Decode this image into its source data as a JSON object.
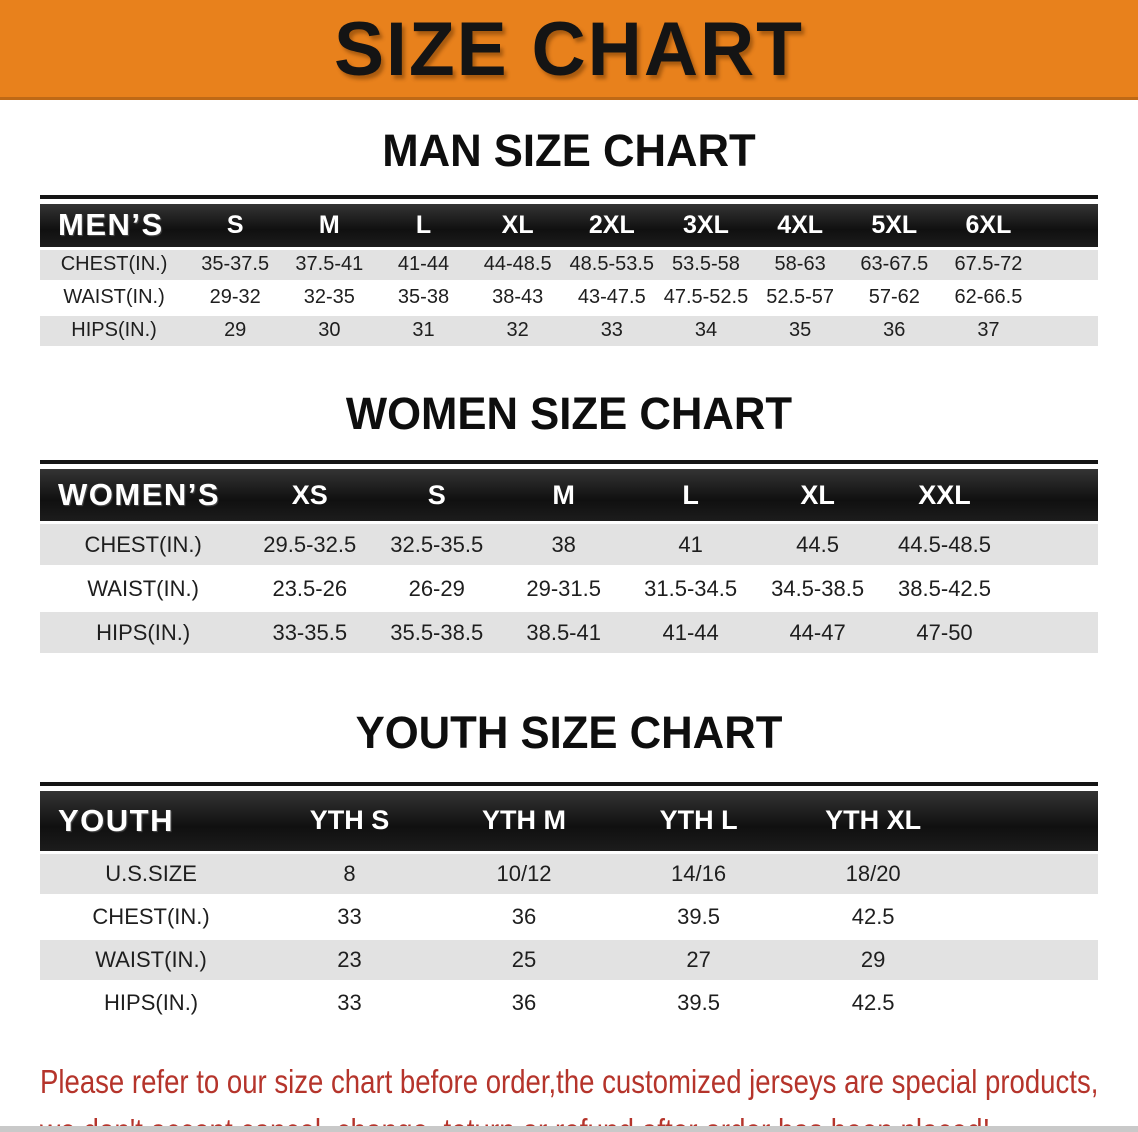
{
  "banner": {
    "title": "SIZE CHART"
  },
  "men": {
    "heading": "MAN SIZE CHART",
    "label": "MEN’S",
    "columns": [
      "S",
      "M",
      "L",
      "XL",
      "2XL",
      "3XL",
      "4XL",
      "5XL",
      "6XL"
    ],
    "rows": [
      {
        "label": "CHEST(IN.)",
        "values": [
          "35-37.5",
          "37.5-41",
          "41-44",
          "44-48.5",
          "48.5-53.5",
          "53.5-58",
          "58-63",
          "63-67.5",
          "67.5-72"
        ]
      },
      {
        "label": "WAIST(IN.)",
        "values": [
          "29-32",
          "32-35",
          "35-38",
          "38-43",
          "43-47.5",
          "47.5-52.5",
          "52.5-57",
          "57-62",
          "62-66.5"
        ]
      },
      {
        "label": "HIPS(IN.)",
        "values": [
          "29",
          "30",
          "31",
          "32",
          "33",
          "34",
          "35",
          "36",
          "37"
        ]
      }
    ]
  },
  "women": {
    "heading": "WOMEN SIZE CHART",
    "label": "WOMEN’S",
    "columns": [
      "XS",
      "S",
      "M",
      "L",
      "XL",
      "XXL"
    ],
    "rows": [
      {
        "label": "CHEST(IN.)",
        "values": [
          "29.5-32.5",
          "32.5-35.5",
          "38",
          "41",
          "44.5",
          "44.5-48.5"
        ]
      },
      {
        "label": "WAIST(IN.)",
        "values": [
          "23.5-26",
          "26-29",
          "29-31.5",
          "31.5-34.5",
          "34.5-38.5",
          "38.5-42.5"
        ]
      },
      {
        "label": "HIPS(IN.)",
        "values": [
          "33-35.5",
          "35.5-38.5",
          "38.5-41",
          "41-44",
          "44-47",
          "47-50"
        ]
      }
    ]
  },
  "youth": {
    "heading": "YOUTH SIZE CHART",
    "label": "YOUTH",
    "columns": [
      "YTH S",
      "YTH M",
      "YTH L",
      "YTH XL"
    ],
    "rows": [
      {
        "label": "U.S.SIZE",
        "values": [
          "8",
          "10/12",
          "14/16",
          "18/20"
        ]
      },
      {
        "label": "CHEST(IN.)",
        "values": [
          "33",
          "36",
          "39.5",
          "42.5"
        ]
      },
      {
        "label": "WAIST(IN.)",
        "values": [
          "23",
          "25",
          "27",
          "29"
        ]
      },
      {
        "label": "HIPS(IN.)",
        "values": [
          "33",
          "36",
          "39.5",
          "42.5"
        ]
      }
    ]
  },
  "footer": {
    "line1": "Please refer to our size chart before order,the customized jerseys are special products,",
    "line2": "we don't accept cancel, change, teturn or refund after order has been placed!"
  },
  "colors": {
    "banner_bg": "#E8811C",
    "banner_text": "#141414",
    "header_bar": "#161616",
    "header_text": "#FFFFFF",
    "stripe": "#E2E2E2",
    "body_text": "#1E1E1E",
    "footer_red": "#B5342B",
    "bottom_bar": "#C9C9C9"
  }
}
